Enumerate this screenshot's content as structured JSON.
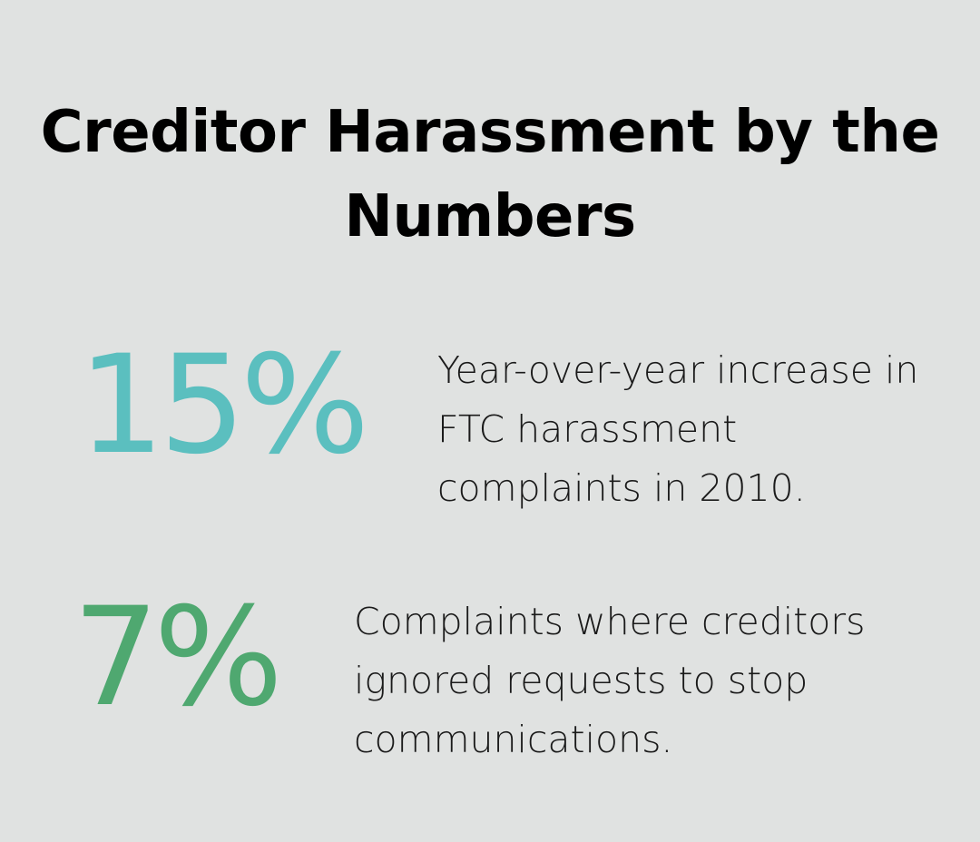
{
  "title": "Creditor Harassment by the Numbers",
  "stats": [
    {
      "value": "15%",
      "description": "Year-over-year increase in FTC harassment complaints in 2010.",
      "color": "#5bbfbf"
    },
    {
      "value": "7%",
      "description": "Complaints where creditors ignored requests to stop communications.",
      "color": "#4fa870"
    }
  ],
  "colors": {
    "background": "#e0e2e1",
    "title": "#000000",
    "text": "#1a1a1a"
  }
}
